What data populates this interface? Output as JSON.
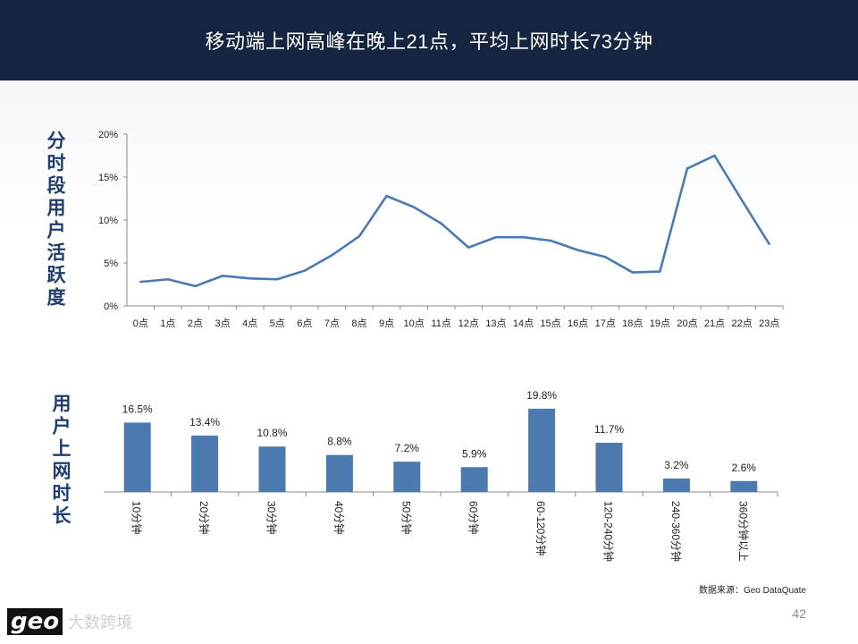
{
  "header": {
    "title": "移动端上网高峰在晚上21点，平均上网时长73分钟"
  },
  "line_section": {
    "side_title": "分时段用户活跃度"
  },
  "bar_section": {
    "side_title": "用户上网时长"
  },
  "footer": {
    "source": "数据来源：Geo DataQuate",
    "page_number": "42",
    "logo_mark": "geo",
    "logo_text": "大数跨境"
  },
  "colors": {
    "header_bg": "#15253f",
    "series": "#4a7ab0",
    "side_title": "#1f3d6e"
  },
  "chart_data": [
    {
      "type": "line",
      "title": "",
      "xlabel": "",
      "ylabel": "",
      "ylim": [
        0,
        20
      ],
      "yticks": [
        "0%",
        "5%",
        "10%",
        "15%",
        "20%"
      ],
      "categories": [
        "0点",
        "1点",
        "2点",
        "3点",
        "4点",
        "5点",
        "6点",
        "7点",
        "8点",
        "9点",
        "10点",
        "11点",
        "12点",
        "13点",
        "14点",
        "15点",
        "16点",
        "17点",
        "18点",
        "19点",
        "20点",
        "21点",
        "22点",
        "23点"
      ],
      "values": [
        2.8,
        3.1,
        2.3,
        3.5,
        3.2,
        3.1,
        4.1,
        5.9,
        8.1,
        12.8,
        11.5,
        9.6,
        6.8,
        8.0,
        8.0,
        7.6,
        6.5,
        5.7,
        3.9,
        4.0,
        16.0,
        17.5,
        12.3,
        7.2
      ],
      "grid": false
    },
    {
      "type": "bar",
      "title": "",
      "categories": [
        "10分钟",
        "20分钟",
        "30分钟",
        "40分钟",
        "50分钟",
        "60分钟",
        "60-120分钟",
        "120-240分钟",
        "240-360分钟",
        "360分钟以上"
      ],
      "values": [
        16.5,
        13.4,
        10.8,
        8.8,
        7.2,
        5.9,
        19.8,
        11.7,
        3.2,
        2.6
      ],
      "data_labels": [
        "16.5%",
        "13.4%",
        "10.8%",
        "8.8%",
        "7.2%",
        "5.9%",
        "19.8%",
        "11.7%",
        "3.2%",
        "2.6%"
      ],
      "ylim": [
        0,
        20
      ]
    }
  ]
}
